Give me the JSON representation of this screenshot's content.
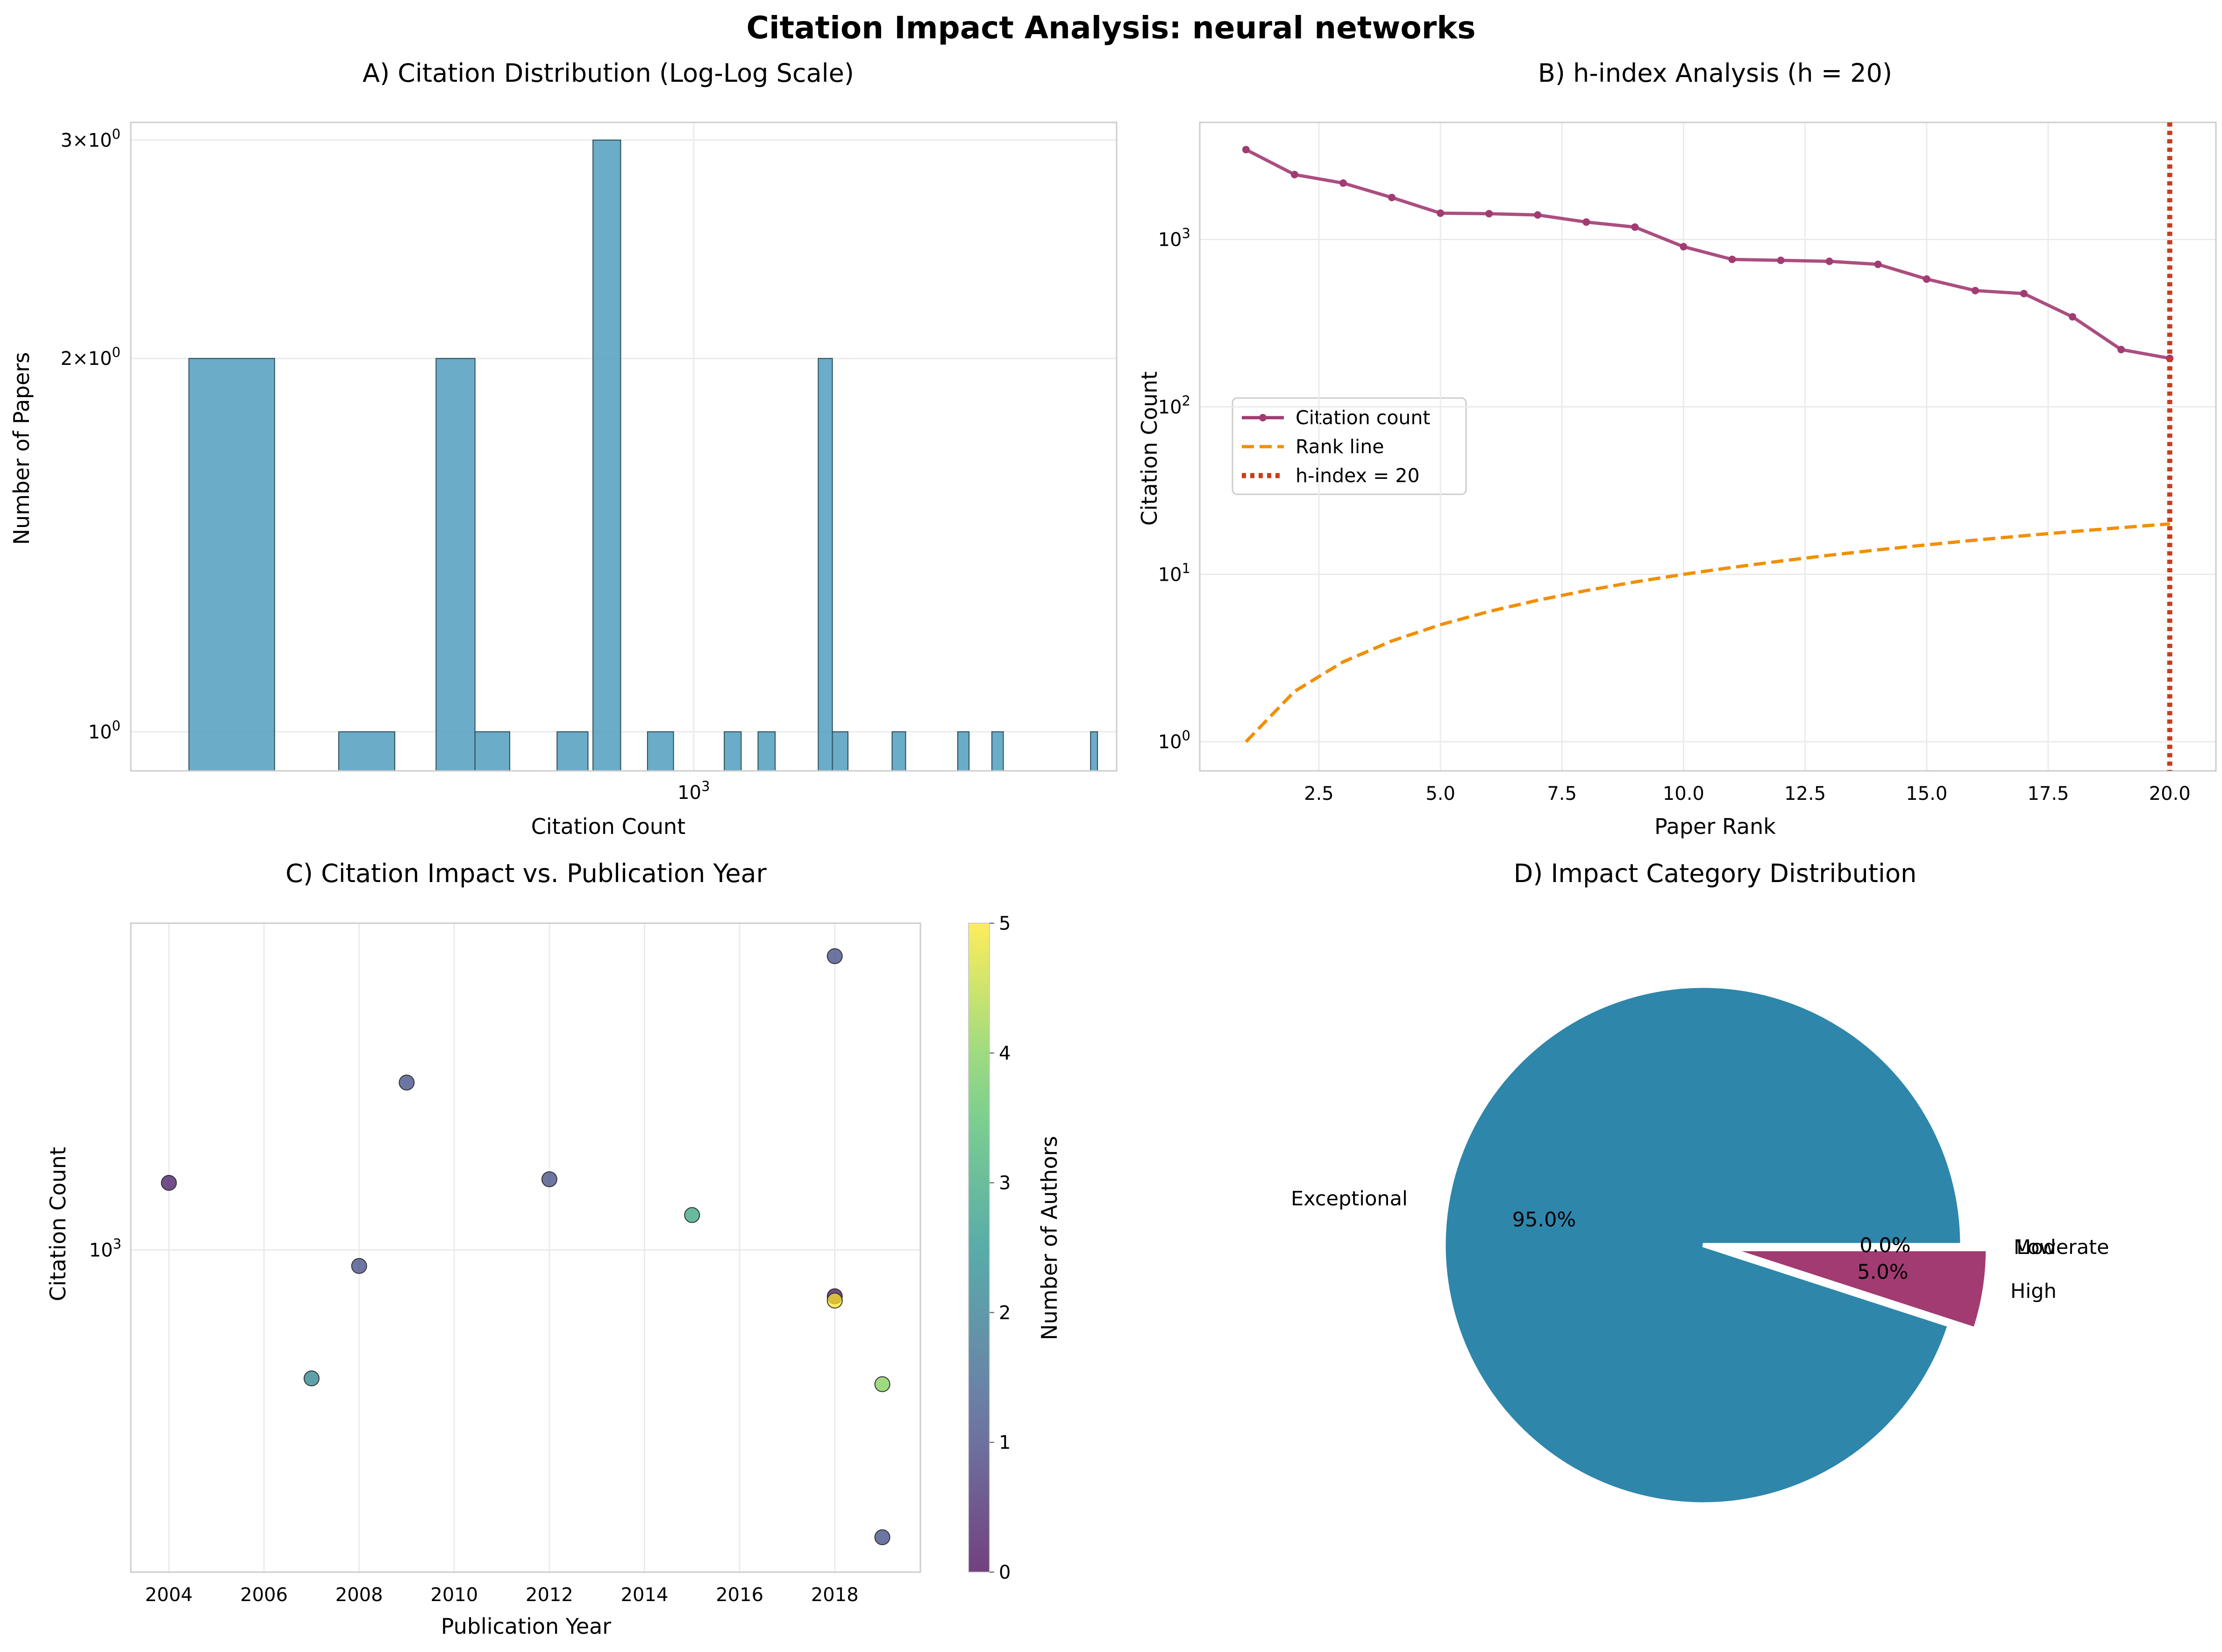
{
  "suptitle": "Citation Impact Analysis: neural networks",
  "chart_data": [
    {
      "type": "bar",
      "title": "A) Citation Distribution (Log-Log Scale)",
      "xlabel": "Citation Count",
      "ylabel": "Number of Papers",
      "xscale": "log",
      "yscale": "log",
      "xlim": [
        330,
        2300
      ],
      "ylim": [
        0.93,
        3.1
      ],
      "grid": true,
      "x_tick_labels": [
        "10^3"
      ],
      "y_tick_labels": [
        "10^0",
        "2×10^0",
        "3×10^0"
      ],
      "bins": [
        {
          "x0": 370,
          "x1": 438,
          "count": 2
        },
        {
          "x0": 497,
          "x1": 555,
          "count": 1
        },
        {
          "x0": 602,
          "x1": 650,
          "count": 2
        },
        {
          "x0": 650,
          "x1": 696,
          "count": 1
        },
        {
          "x0": 764,
          "x1": 812,
          "count": 1
        },
        {
          "x0": 820,
          "x1": 866,
          "count": 3
        },
        {
          "x0": 913,
          "x1": 961,
          "count": 1
        },
        {
          "x0": 1062,
          "x1": 1098,
          "count": 1
        },
        {
          "x0": 1135,
          "x1": 1174,
          "count": 1
        },
        {
          "x0": 1278,
          "x1": 1314,
          "count": 2
        },
        {
          "x0": 1314,
          "x1": 1355,
          "count": 1
        },
        {
          "x0": 1478,
          "x1": 1518,
          "count": 1
        },
        {
          "x0": 1682,
          "x1": 1720,
          "count": 1
        },
        {
          "x0": 1799,
          "x1": 1840,
          "count": 1
        },
        {
          "x0": 2185,
          "x1": 2215,
          "count": 1
        }
      ],
      "color": "#5ba3c2"
    },
    {
      "type": "line",
      "title": "B) h-index Analysis (h = 20)",
      "xlabel": "Paper Rank",
      "ylabel": "Citation Count",
      "yscale": "log",
      "xlim": [
        0.05,
        20.95
      ],
      "ylim": [
        0.67,
        5000
      ],
      "grid": true,
      "x_ticks": [
        2.5,
        5.0,
        7.5,
        10.0,
        12.5,
        15.0,
        17.5,
        20.0
      ],
      "x_tick_labels": [
        "2.5",
        "5.0",
        "7.5",
        "10.0",
        "12.5",
        "15.0",
        "17.5",
        "20.0"
      ],
      "y_tick_labels": [
        "10^0",
        "10^1",
        "10^2",
        "10^3"
      ],
      "legend_position": "center-left",
      "series": [
        {
          "name": "Citation count",
          "color": "#a23b72",
          "x": [
            1,
            2,
            3,
            4,
            5,
            6,
            7,
            8,
            9,
            10,
            11,
            12,
            13,
            14,
            15,
            16,
            17,
            18,
            19,
            20
          ],
          "values": [
            3440,
            2440,
            2170,
            1780,
            1435,
            1425,
            1400,
            1270,
            1185,
            905,
            760,
            750,
            740,
            710,
            580,
            495,
            475,
            345,
            220,
            195
          ]
        },
        {
          "name": "Rank line",
          "color": "#f18f01",
          "style": "dashed",
          "x": [
            1,
            2,
            3,
            4,
            5,
            6,
            7,
            8,
            9,
            10,
            11,
            12,
            13,
            14,
            15,
            16,
            17,
            18,
            19,
            20
          ],
          "values": [
            1,
            2,
            3,
            4,
            5,
            6,
            7,
            8,
            9,
            10,
            11,
            12,
            13,
            14,
            15,
            16,
            17,
            18,
            19,
            20
          ]
        }
      ],
      "h_index": {
        "label": "h-index = 20",
        "x": 20,
        "color": "#c73e1d"
      }
    },
    {
      "type": "scatter",
      "title": "C) Citation Impact vs. Publication Year",
      "xlabel": "Publication Year",
      "ylabel": "Citation Count",
      "yscale": "log",
      "xlim": [
        2003.2,
        2019.8
      ],
      "ylim": [
        470,
        2150
      ],
      "grid": true,
      "x_ticks": [
        2004,
        2006,
        2008,
        2010,
        2012,
        2014,
        2016,
        2018
      ],
      "x_tick_labels": [
        "2004",
        "2006",
        "2008",
        "2010",
        "2012",
        "2014",
        "2016",
        "2018"
      ],
      "y_tick_labels": [
        "10^3"
      ],
      "colorbar": {
        "label": "Number of Authors",
        "range": [
          0,
          5
        ],
        "ticks": [
          "0",
          "1",
          "2",
          "3",
          "4",
          "5"
        ]
      },
      "points": [
        {
          "year": 2004,
          "citations": 1170,
          "authors": 0.3
        },
        {
          "year": 2007,
          "citations": 740,
          "authors": 2.2
        },
        {
          "year": 2008,
          "citations": 963,
          "authors": 1.1
        },
        {
          "year": 2009,
          "citations": 1480,
          "authors": 1.1
        },
        {
          "year": 2012,
          "citations": 1180,
          "authors": 1.1
        },
        {
          "year": 2015,
          "citations": 1085,
          "authors": 2.9
        },
        {
          "year": 2018,
          "citations": 1990,
          "authors": 1.1
        },
        {
          "year": 2018,
          "citations": 897,
          "authors": 0.2
        },
        {
          "year": 2018,
          "citations": 888,
          "authors": 5.0
        },
        {
          "year": 2019,
          "citations": 730,
          "authors": 4.0
        },
        {
          "year": 2019,
          "citations": 510,
          "authors": 1.1
        }
      ]
    },
    {
      "type": "pie",
      "title": "D) Impact Category Distribution",
      "slices": [
        {
          "label": "Exceptional",
          "pct": 95.0,
          "pct_label": "95.0%",
          "color": "#2e86ab",
          "explode": false
        },
        {
          "label": "High",
          "pct": 5.0,
          "pct_label": "5.0%",
          "color": "#a23b72",
          "explode": true
        },
        {
          "label": "Moderate",
          "pct": 0.0,
          "pct_label": "0.0%",
          "color": "#f18f01",
          "explode": false
        },
        {
          "label": "Low",
          "pct": 0.0,
          "pct_label": "0.0%",
          "color": "#c73e1d",
          "explode": false
        }
      ]
    }
  ]
}
